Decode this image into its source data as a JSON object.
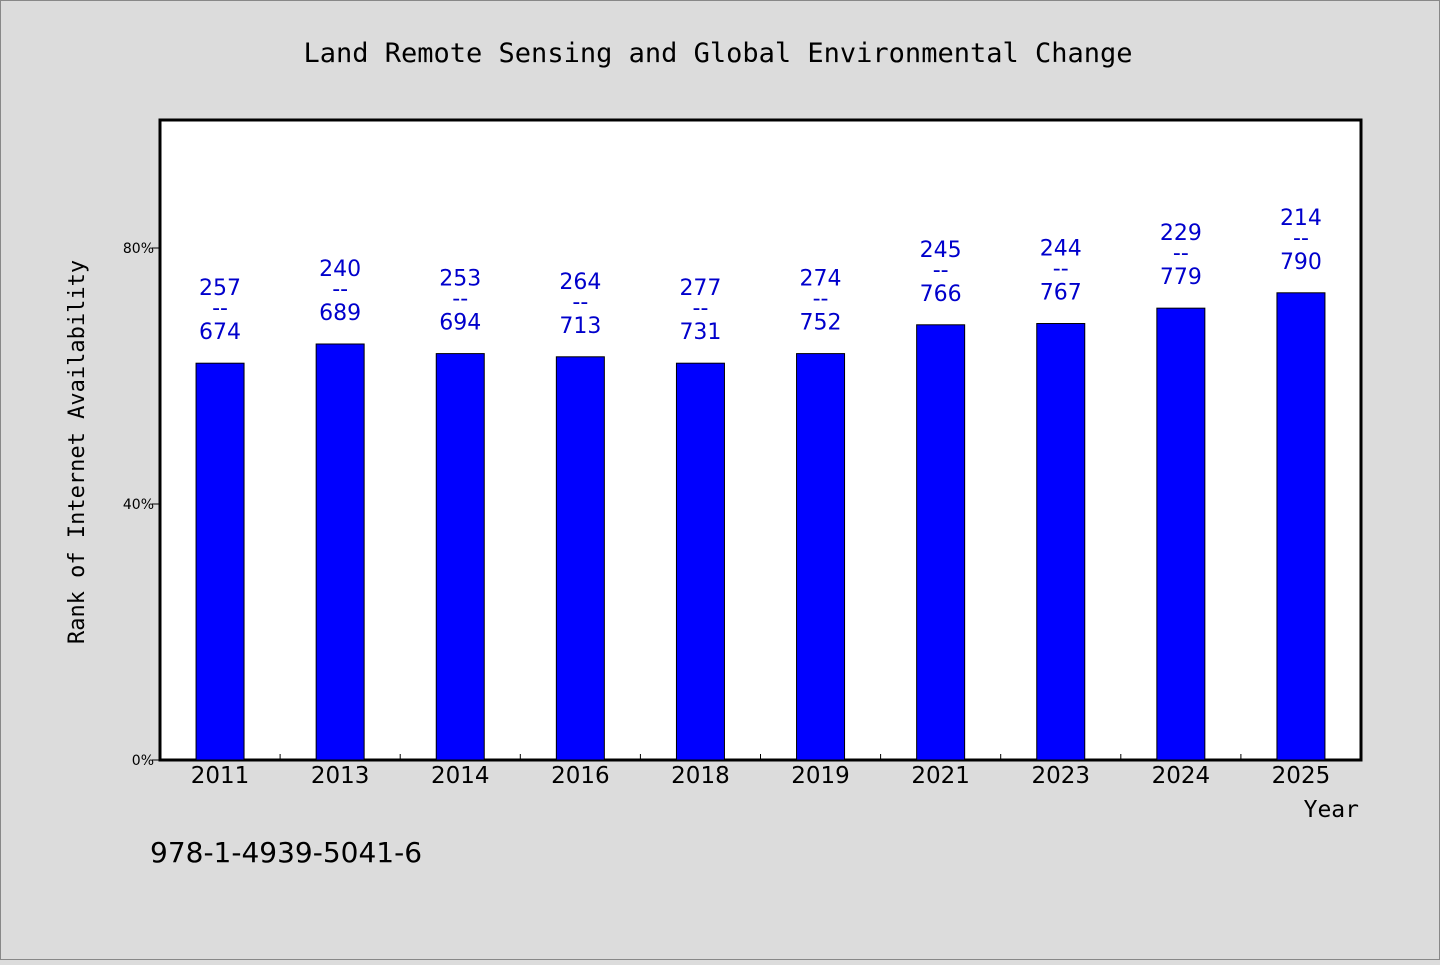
{
  "chart_data": {
    "type": "bar",
    "title": "Land Remote Sensing and Global Environmental Change",
    "xlabel": "Year",
    "ylabel": "Rank of Internet Availability",
    "categories": [
      "2011",
      "2013",
      "2014",
      "2016",
      "2018",
      "2019",
      "2021",
      "2023",
      "2024",
      "2025"
    ],
    "values": [
      0.62,
      0.65,
      0.635,
      0.63,
      0.62,
      0.635,
      0.68,
      0.682,
      0.706,
      0.73
    ],
    "bar_labels": [
      {
        "top": "257",
        "sep": "--",
        "bottom": "674"
      },
      {
        "top": "240",
        "sep": "--",
        "bottom": "689"
      },
      {
        "top": "253",
        "sep": "--",
        "bottom": "694"
      },
      {
        "top": "264",
        "sep": "--",
        "bottom": "713"
      },
      {
        "top": "277",
        "sep": "--",
        "bottom": "731"
      },
      {
        "top": "274",
        "sep": "--",
        "bottom": "752"
      },
      {
        "top": "245",
        "sep": "--",
        "bottom": "766"
      },
      {
        "top": "244",
        "sep": "--",
        "bottom": "767"
      },
      {
        "top": "229",
        "sep": "--",
        "bottom": "779"
      },
      {
        "top": "214",
        "sep": "--",
        "bottom": "790"
      }
    ],
    "ylim": [
      0,
      1.0
    ],
    "yticks": [
      {
        "value": 0,
        "label": "0%"
      },
      {
        "value": 0.4,
        "label": "40%"
      },
      {
        "value": 0.8,
        "label": "80%"
      }
    ],
    "grid": false,
    "colors": {
      "bar": "#0000ff",
      "label": "#0000cc",
      "background": "#dcdcdc",
      "plot_background": "#ffffff"
    }
  },
  "footer": {
    "isbn": "978-1-4939-5041-6"
  }
}
